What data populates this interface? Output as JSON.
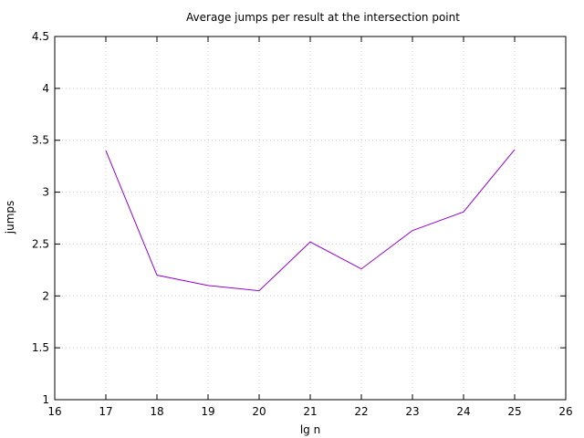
{
  "chart_data": {
    "type": "line",
    "title": "Average jumps per result at the intersection point",
    "xlabel": "lg n",
    "ylabel": "jumps",
    "xlim": [
      16,
      26
    ],
    "ylim": [
      1,
      4.5
    ],
    "xticks": [
      16,
      17,
      18,
      19,
      20,
      21,
      22,
      23,
      24,
      25,
      26
    ],
    "yticks": [
      1,
      1.5,
      2,
      2.5,
      3,
      3.5,
      4,
      4.5
    ],
    "xtick_labels": [
      "16",
      "17",
      "18",
      "19",
      "20",
      "21",
      "22",
      "23",
      "24",
      "25",
      "26"
    ],
    "ytick_labels": [
      "1",
      "1.5",
      "2",
      "2.5",
      "3",
      "3.5",
      "4",
      "4.5"
    ],
    "grid": true,
    "series": [
      {
        "color": "#9400d3",
        "x": [
          17,
          18,
          19,
          20,
          21,
          22,
          23,
          24,
          25
        ],
        "y": [
          3.4,
          2.2,
          2.1,
          2.05,
          2.52,
          2.26,
          2.63,
          2.81,
          3.41
        ]
      }
    ]
  }
}
